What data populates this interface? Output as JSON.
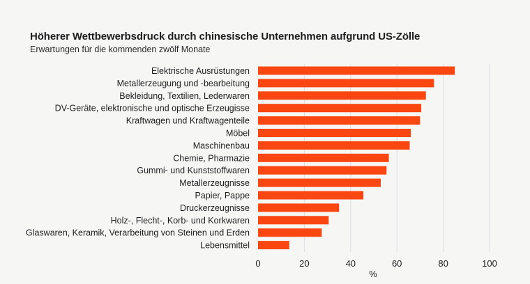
{
  "chart_data": {
    "type": "bar",
    "orientation": "horizontal",
    "title": "Höherer Wettbewerbsdruck durch chinesische Unternehmen aufgrund US-Zölle",
    "subtitle": "Erwartungen für die kommenden zwölf Monate",
    "xlabel": "%",
    "ylabel": "",
    "xlim": [
      0,
      100
    ],
    "xticks": [
      0,
      20,
      40,
      60,
      80,
      100
    ],
    "grid": "vertical",
    "bar_color": "#fa4611",
    "grid_color": "#d9dde6",
    "categories": [
      "Elektrische Ausrüstungen",
      "Metallerzeugung und -bearbeitung",
      "Bekleidung, Textilien, Lederwaren",
      "DV-Geräte, elektronische und optische Erzeugisse",
      "Kraftwagen und Kraftwagenteile",
      "Möbel",
      "Maschinenbau",
      "Chemie, Pharmazie",
      "Gummi- und Kunststoffwaren",
      "Metallerzeugnisse",
      "Papier, Pappe",
      "Druckerzeugnisse",
      "Holz-, Flecht-, Korb- und Korkwaren",
      "Glaswaren, Keramik, Verarbeitung von Steinen und Erden",
      "Lebensmittel"
    ],
    "values": [
      85,
      76,
      72.5,
      70.5,
      70,
      66,
      65.5,
      56.5,
      55.5,
      53,
      45.5,
      35,
      30.5,
      27.5,
      13.5
    ]
  }
}
